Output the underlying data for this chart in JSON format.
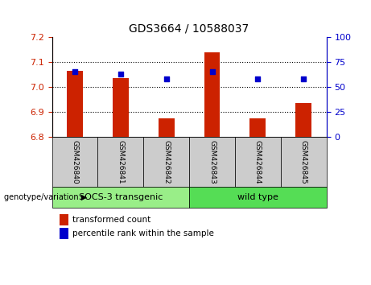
{
  "title": "GDS3664 / 10588037",
  "samples": [
    "GSM426840",
    "GSM426841",
    "GSM426842",
    "GSM426843",
    "GSM426844",
    "GSM426845"
  ],
  "bar_values": [
    7.065,
    7.035,
    6.875,
    7.14,
    6.875,
    6.935
  ],
  "percentile_values": [
    65,
    63,
    58,
    65,
    58,
    58
  ],
  "bar_base": 6.8,
  "ylim_left": [
    6.8,
    7.2
  ],
  "ylim_right": [
    0,
    100
  ],
  "yticks_left": [
    6.8,
    6.9,
    7.0,
    7.1,
    7.2
  ],
  "yticks_right": [
    0,
    25,
    50,
    75,
    100
  ],
  "bar_color": "#cc2200",
  "dot_color": "#0000cc",
  "groups": [
    {
      "label": "SOCS-3 transgenic",
      "indices": [
        0,
        1,
        2
      ],
      "color": "#99ee88"
    },
    {
      "label": "wild type",
      "indices": [
        3,
        4,
        5
      ],
      "color": "#55dd55"
    }
  ],
  "group_label_prefix": "genotype/variation",
  "legend_bar_label": "transformed count",
  "legend_dot_label": "percentile rank within the sample",
  "tick_label_color_left": "#cc2200",
  "tick_label_color_right": "#0000cc",
  "background_xtick": "#cccccc",
  "bar_width": 0.35
}
